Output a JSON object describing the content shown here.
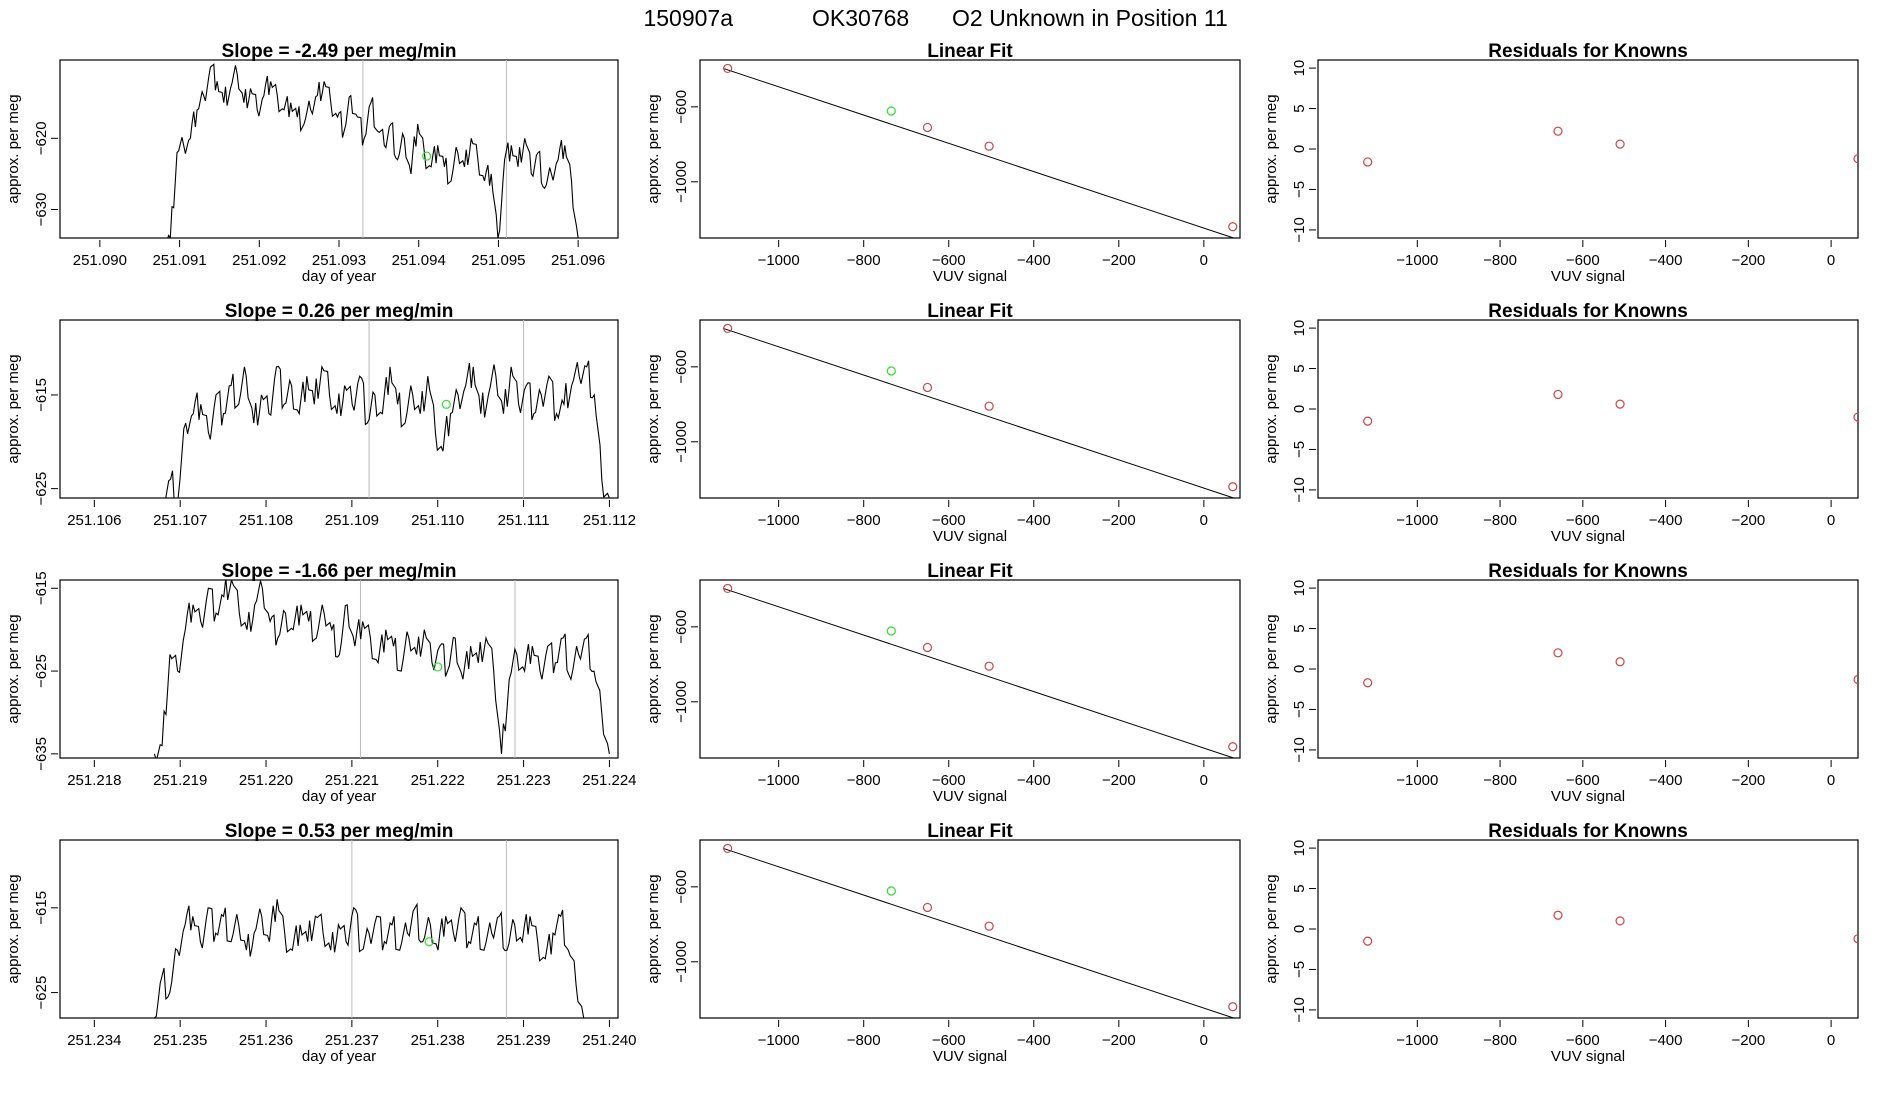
{
  "figure_title": {
    "run": "150907a",
    "tank": "OK30768",
    "description": "O2 Unknown in Position  11"
  },
  "colors": {
    "known": "#cc4444",
    "unknown": "#33dd33",
    "trace": "#000000",
    "marker_line": "#bbbbbb"
  },
  "chart_data": [
    {
      "row": 1,
      "panel": "time-series",
      "type": "line",
      "title_prefix": "Slope = ",
      "slope": "-2.49",
      "slope_unit": " per meg/min",
      "xlabel": "day of year",
      "ylabel": "approx. per meg",
      "xlim": [
        251.0895,
        251.0965
      ],
      "ylim": [
        -634,
        -609
      ],
      "xticks": [
        "251.090",
        "251.091",
        "251.092",
        "251.093",
        "251.094",
        "251.095",
        "251.096"
      ],
      "yticks": [
        -620,
        -630
      ],
      "x_start": 251.0908,
      "x_end": 251.096,
      "levels": [
        -634,
        -634,
        -622,
        -621,
        -620,
        -616,
        -614,
        -610,
        -612,
        -615,
        -613,
        -611,
        -615,
        -613,
        -616,
        -614,
        -612,
        -614,
        -616,
        -615,
        -617,
        -618,
        -616,
        -614,
        -612,
        -615,
        -617,
        -619,
        -614,
        -617,
        -620,
        -615,
        -619,
        -621,
        -618,
        -623,
        -620,
        -625,
        -618,
        -622,
        -624,
        -621,
        -624,
        -626,
        -622,
        -624,
        -620,
        -623,
        -626,
        -625,
        -634,
        -623,
        -621,
        -624,
        -620,
        -625,
        -622,
        -627,
        -625,
        -623,
        -621,
        -626,
        -634
      ],
      "vlines": [
        251.0933,
        251.0951
      ],
      "unknown_point": [
        251.0941,
        -622.5
      ]
    },
    {
      "row": 1,
      "panel": "linear-fit",
      "type": "scatter",
      "title": "Linear Fit",
      "xlabel": "VUV signal",
      "ylabel": "approx. per meg",
      "xlim": [
        -1185,
        85
      ],
      "ylim": [
        -1300,
        -350
      ],
      "xticks": [
        -1000,
        -800,
        -600,
        -400,
        -200,
        0
      ],
      "yticks": [
        -600,
        -1000
      ],
      "fit_line": [
        [
          -1130,
          -395
        ],
        [
          70,
          -1300
        ]
      ],
      "knowns": [
        [
          -1120,
          -395
        ],
        [
          -650,
          -710
        ],
        [
          -505,
          -810
        ],
        [
          68,
          -1240
        ]
      ],
      "unknown": [
        [
          -735,
          -622
        ]
      ]
    },
    {
      "row": 1,
      "panel": "residuals",
      "type": "scatter",
      "title": "Residuals for Knowns",
      "xlabel": "VUV signal",
      "ylabel": "approx. per meg",
      "xlim": [
        -1240,
        65
      ],
      "ylim": [
        -11,
        11
      ],
      "xticks": [
        -1000,
        -800,
        -600,
        -400,
        -200,
        0
      ],
      "yticks": [
        10,
        5,
        0,
        -5,
        -10
      ],
      "points": [
        [
          -1120,
          -1.6
        ],
        [
          -660,
          2.2
        ],
        [
          -510,
          0.6
        ],
        [
          65,
          -1.2
        ]
      ]
    },
    {
      "row": 2,
      "panel": "time-series",
      "type": "line",
      "title_prefix": "Slope = ",
      "slope": "0.26",
      "slope_unit": " per meg/min",
      "xlabel": "",
      "ylabel": "approx. per meg",
      "xlim": [
        251.1056,
        251.1121
      ],
      "ylim": [
        -626,
        -607
      ],
      "xticks": [
        "251.106",
        "251.107",
        "251.108",
        "251.109",
        "251.110",
        "251.111",
        "251.112"
      ],
      "yticks": [
        -615,
        -625
      ],
      "x_start": 251.1068,
      "x_end": 251.112,
      "levels": [
        -626,
        -624,
        -626,
        -618,
        -617,
        -616,
        -619,
        -615,
        -617,
        -614,
        -616,
        -613,
        -618,
        -615,
        -617,
        -612,
        -616,
        -614,
        -617,
        -613,
        -616,
        -612,
        -615,
        -617,
        -614,
        -616,
        -613,
        -618,
        -615,
        -617,
        -612,
        -616,
        -618,
        -615,
        -617,
        -613,
        -619,
        -621,
        -617,
        -615,
        -614,
        -612,
        -617,
        -615,
        -613,
        -617,
        -612,
        -616,
        -614,
        -617,
        -615,
        -613,
        -617,
        -616,
        -614,
        -613,
        -612,
        -615,
        -624,
        -626
      ],
      "vlines": [
        251.1092,
        251.111
      ],
      "unknown_point": [
        251.1101,
        -616
      ]
    },
    {
      "row": 2,
      "panel": "linear-fit",
      "type": "scatter",
      "title": "Linear Fit",
      "xlabel": "VUV signal",
      "ylabel": "approx. per meg",
      "xlim": [
        -1185,
        85
      ],
      "ylim": [
        -1300,
        -350
      ],
      "xticks": [
        -1000,
        -800,
        -600,
        -400,
        -200,
        0
      ],
      "yticks": [
        -600,
        -1000
      ],
      "fit_line": [
        [
          -1130,
          -395
        ],
        [
          70,
          -1300
        ]
      ],
      "knowns": [
        [
          -1120,
          -395
        ],
        [
          -650,
          -710
        ],
        [
          -505,
          -810
        ],
        [
          68,
          -1240
        ]
      ],
      "unknown": [
        [
          -735,
          -622
        ]
      ]
    },
    {
      "row": 2,
      "panel": "residuals",
      "type": "scatter",
      "title": "Residuals for Knowns",
      "xlabel": "VUV signal",
      "ylabel": "approx. per meg",
      "xlim": [
        -1240,
        65
      ],
      "ylim": [
        -11,
        11
      ],
      "xticks": [
        -1000,
        -800,
        -600,
        -400,
        -200,
        0
      ],
      "yticks": [
        10,
        5,
        0,
        -5,
        -10
      ],
      "points": [
        [
          -1120,
          -1.5
        ],
        [
          -660,
          1.8
        ],
        [
          -510,
          0.6
        ],
        [
          65,
          -1.0
        ]
      ]
    },
    {
      "row": 3,
      "panel": "time-series",
      "type": "line",
      "title_prefix": "Slope = ",
      "slope": "-1.66",
      "slope_unit": " per meg/min",
      "xlabel": "day of year",
      "ylabel": "approx. per meg",
      "xlim": [
        251.2176,
        251.2241
      ],
      "ylim": [
        -635.5,
        -614
      ],
      "xticks": [
        "251.218",
        "251.219",
        "251.220",
        "251.221",
        "251.222",
        "251.223",
        "251.224"
      ],
      "yticks": [
        -615,
        -625,
        -635
      ],
      "x_start": 251.2187,
      "x_end": 251.224,
      "levels": [
        -635,
        -634,
        -623,
        -625,
        -620,
        -617,
        -619,
        -615,
        -618,
        -616,
        -614,
        -618,
        -620,
        -617,
        -615,
        -619,
        -621,
        -618,
        -620,
        -617,
        -619,
        -621,
        -618,
        -620,
        -623,
        -617,
        -622,
        -619,
        -621,
        -624,
        -620,
        -622,
        -625,
        -621,
        -623,
        -620,
        -624,
        -622,
        -625,
        -621,
        -626,
        -622,
        -624,
        -621,
        -625,
        -635,
        -626,
        -623,
        -625,
        -622,
        -625,
        -622,
        -624,
        -621,
        -626,
        -623,
        -621,
        -625,
        -630,
        -635
      ],
      "vlines": [
        251.2211,
        251.2229
      ],
      "unknown_point": [
        251.222,
        -624.5
      ]
    },
    {
      "row": 3,
      "panel": "linear-fit",
      "type": "scatter",
      "title": "Linear Fit",
      "xlabel": "VUV signal",
      "ylabel": "approx. per meg",
      "xlim": [
        -1185,
        85
      ],
      "ylim": [
        -1300,
        -350
      ],
      "xticks": [
        -1000,
        -800,
        -600,
        -400,
        -200,
        0
      ],
      "yticks": [
        -600,
        -1000
      ],
      "fit_line": [
        [
          -1130,
          -395
        ],
        [
          70,
          -1300
        ]
      ],
      "knowns": [
        [
          -1120,
          -395
        ],
        [
          -650,
          -710
        ],
        [
          -505,
          -810
        ],
        [
          68,
          -1240
        ]
      ],
      "unknown": [
        [
          -735,
          -622
        ]
      ]
    },
    {
      "row": 3,
      "panel": "residuals",
      "type": "scatter",
      "title": "Residuals for Knowns",
      "xlabel": "VUV signal",
      "ylabel": "approx. per meg",
      "xlim": [
        -1240,
        65
      ],
      "ylim": [
        -11,
        11
      ],
      "xticks": [
        -1000,
        -800,
        -600,
        -400,
        -200,
        0
      ],
      "yticks": [
        10,
        5,
        0,
        -5,
        -10
      ],
      "points": [
        [
          -1120,
          -1.7
        ],
        [
          -660,
          2.0
        ],
        [
          -510,
          0.9
        ],
        [
          65,
          -1.3
        ]
      ]
    },
    {
      "row": 4,
      "panel": "time-series",
      "type": "line",
      "title_prefix": "Slope = ",
      "slope": "0.53",
      "slope_unit": " per meg/min",
      "xlabel": "day of year",
      "ylabel": "approx. per meg",
      "xlim": [
        251.2336,
        251.2401
      ],
      "ylim": [
        -628,
        -607
      ],
      "xticks": [
        "251.234",
        "251.235",
        "251.236",
        "251.237",
        "251.238",
        "251.239",
        "251.240"
      ],
      "yticks": [
        -615,
        -625
      ],
      "x_start": 251.2347,
      "x_end": 251.2397,
      "levels": [
        -628,
        -623,
        -625,
        -620,
        -617,
        -616,
        -619,
        -615,
        -618,
        -616,
        -619,
        -617,
        -620,
        -618,
        -616,
        -619,
        -614,
        -618,
        -620,
        -617,
        -619,
        -616,
        -618,
        -620,
        -617,
        -619,
        -615,
        -620,
        -618,
        -616,
        -619,
        -617,
        -620,
        -618,
        -615,
        -619,
        -617,
        -620,
        -616,
        -618,
        -615,
        -619,
        -617,
        -620,
        -618,
        -616,
        -620,
        -617,
        -619,
        -616,
        -619,
        -621,
        -618,
        -616,
        -620,
        -624,
        -628
      ],
      "vlines": [
        251.237,
        251.2388
      ],
      "unknown_point": [
        251.2379,
        -619
      ]
    },
    {
      "row": 4,
      "panel": "linear-fit",
      "type": "scatter",
      "title": "Linear Fit",
      "xlabel": "VUV signal",
      "ylabel": "approx. per meg",
      "xlim": [
        -1185,
        85
      ],
      "ylim": [
        -1300,
        -350
      ],
      "xticks": [
        -1000,
        -800,
        -600,
        -400,
        -200,
        0
      ],
      "yticks": [
        -600,
        -1000
      ],
      "fit_line": [
        [
          -1130,
          -395
        ],
        [
          70,
          -1300
        ]
      ],
      "knowns": [
        [
          -1120,
          -395
        ],
        [
          -650,
          -710
        ],
        [
          -505,
          -810
        ],
        [
          68,
          -1240
        ]
      ],
      "unknown": [
        [
          -735,
          -622
        ]
      ]
    },
    {
      "row": 4,
      "panel": "residuals",
      "type": "scatter",
      "title": "Residuals for Knowns",
      "xlabel": "VUV signal",
      "ylabel": "approx. per meg",
      "xlim": [
        -1240,
        65
      ],
      "ylim": [
        -11,
        11
      ],
      "xticks": [
        -1000,
        -800,
        -600,
        -400,
        -200,
        0
      ],
      "yticks": [
        10,
        5,
        0,
        -5,
        -10
      ],
      "points": [
        [
          -1120,
          -1.5
        ],
        [
          -660,
          1.7
        ],
        [
          -510,
          1.0
        ],
        [
          65,
          -1.2
        ]
      ]
    }
  ]
}
